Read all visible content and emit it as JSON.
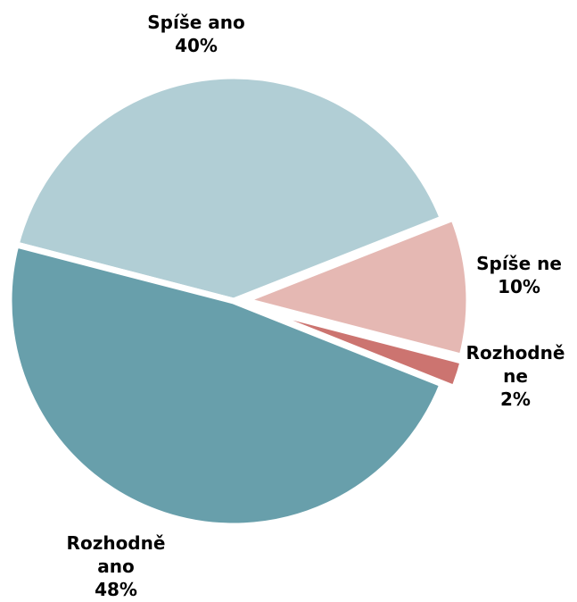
{
  "chart_data": {
    "type": "pie",
    "title": "",
    "start_angle_deg": -14.5,
    "direction": "counterclockwise",
    "slices": [
      {
        "label_lines": [
          "Spíše ne"
        ],
        "percent_label": "10%",
        "value": 10,
        "color": "#E5B8B3"
      },
      {
        "label_lines": [
          "Spíše ano"
        ],
        "percent_label": "40%",
        "value": 40,
        "color": "#B1CED5"
      },
      {
        "label_lines": [
          "Rozhodně",
          "ano"
        ],
        "percent_label": "48%",
        "value": 48,
        "color": "#689FAB"
      },
      {
        "label_lines": [
          "Rozhodně",
          "ne"
        ],
        "percent_label": "2%",
        "value": 2,
        "color": "#CC7470"
      }
    ]
  }
}
